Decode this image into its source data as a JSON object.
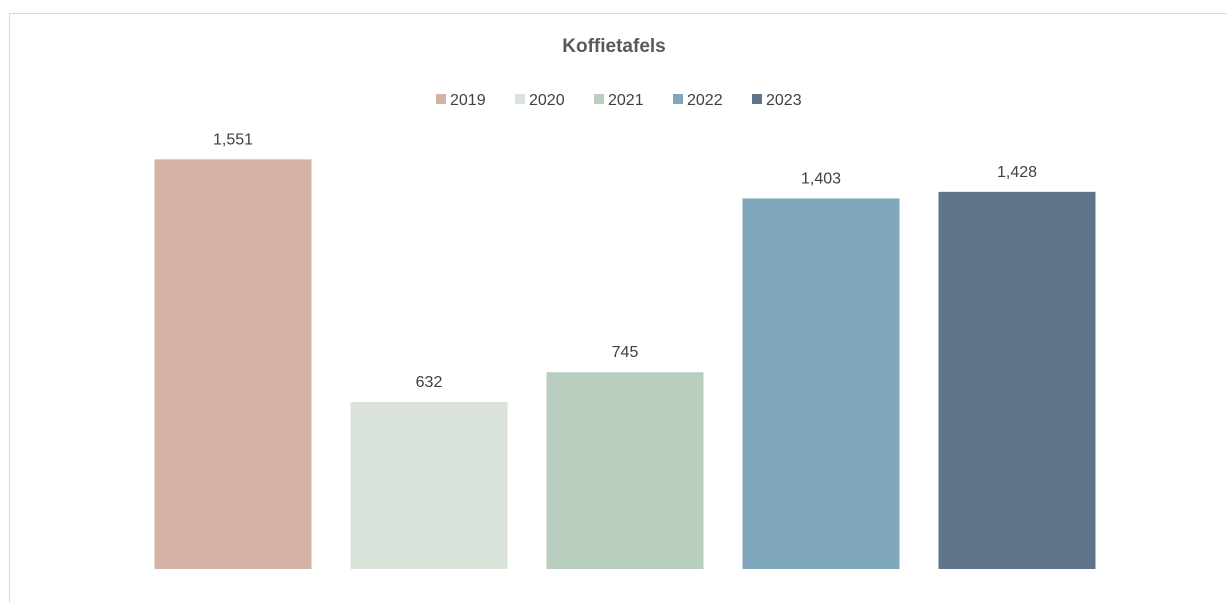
{
  "chart_data": {
    "type": "bar",
    "title": "Koffietafels",
    "categories": [
      "2019",
      "2020",
      "2021",
      "2022",
      "2023"
    ],
    "values": [
      1551,
      632,
      745,
      1403,
      1428
    ],
    "value_labels": [
      "1,551",
      "632",
      "745",
      "1,403",
      "1,428"
    ],
    "colors": [
      "#d4b2a5",
      "#d9e3da",
      "#b8cfc0",
      "#80a7bb",
      "#5e7488"
    ],
    "legend": {
      "position": "top",
      "entries": [
        "2019",
        "2020",
        "2021",
        "2022",
        "2023"
      ]
    },
    "xlabel": "",
    "ylabel": "",
    "ylim": [
      0,
      1700
    ],
    "grid": false
  }
}
